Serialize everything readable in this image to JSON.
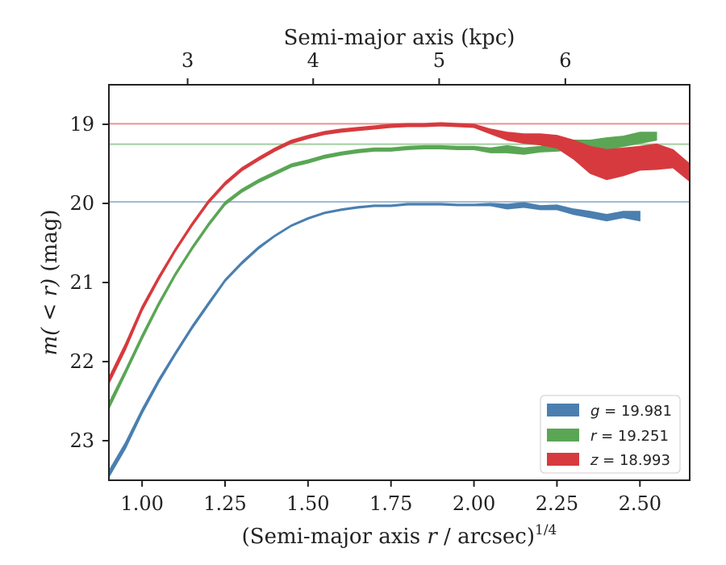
{
  "chart_data": {
    "type": "area",
    "x_axis": {
      "label": "(Semi-major axis r / arcsec)",
      "label_prefix": "(Semi-major axis ",
      "label_var": "r",
      "label_suffix": " / arcsec)",
      "label_exp": "1/4",
      "range": [
        0.9,
        2.65
      ],
      "ticks": [
        1.0,
        1.25,
        1.5,
        1.75,
        2.0,
        2.25,
        2.5
      ],
      "tick_labels": [
        "1.00",
        "1.25",
        "1.50",
        "1.75",
        "2.00",
        "2.25",
        "2.50"
      ]
    },
    "top_axis": {
      "label": "Semi-major axis (kpc)",
      "ticks": [
        3,
        4,
        5,
        6
      ],
      "tick_positions_x": [
        1.1372,
        1.5155,
        1.8951,
        2.2753
      ],
      "tick_labels": [
        "3",
        "4",
        "5",
        "6"
      ]
    },
    "y_axis": {
      "label": "m(<r) (mag)",
      "label_math": "m( < r)",
      "label_unit": " (mag)",
      "range": [
        23.5,
        18.5
      ],
      "inverted": true,
      "ticks": [
        19,
        20,
        21,
        22,
        23
      ],
      "tick_labels": [
        "19",
        "20",
        "21",
        "22",
        "23"
      ]
    },
    "legend": {
      "position": "lower-right",
      "entries": [
        {
          "var": "g",
          "text": " = 19.981"
        },
        {
          "var": "r",
          "text": " = 19.251"
        },
        {
          "var": "z",
          "text": " = 18.993"
        }
      ]
    },
    "series": [
      {
        "name": "g = 19.981",
        "color": "#4a7fb0",
        "total": 19.981,
        "x": [
          0.9,
          0.95,
          1.0,
          1.05,
          1.1,
          1.15,
          1.2,
          1.25,
          1.3,
          1.35,
          1.4,
          1.45,
          1.5,
          1.55,
          1.6,
          1.65,
          1.7,
          1.75,
          1.8,
          1.85,
          1.9,
          1.95,
          2.0,
          2.05,
          2.1,
          2.15,
          2.2,
          2.25,
          2.3,
          2.35,
          2.4,
          2.45,
          2.5
        ],
        "y_upper": [
          23.38,
          23.02,
          22.6,
          22.22,
          21.88,
          21.55,
          21.25,
          20.96,
          20.74,
          20.55,
          20.4,
          20.27,
          20.18,
          20.11,
          20.07,
          20.04,
          20.02,
          20.02,
          20.0,
          20.0,
          20.0,
          20.01,
          20.01,
          20.0,
          20.01,
          19.99,
          20.03,
          20.02,
          20.07,
          20.1,
          20.14,
          20.1,
          20.1
        ],
        "y_lower": [
          23.46,
          23.1,
          22.66,
          22.27,
          21.92,
          21.59,
          21.29,
          20.99,
          20.77,
          20.58,
          20.42,
          20.29,
          20.2,
          20.13,
          20.09,
          20.06,
          20.04,
          20.04,
          20.02,
          20.02,
          20.02,
          20.03,
          20.03,
          20.03,
          20.07,
          20.05,
          20.08,
          20.08,
          20.14,
          20.18,
          20.22,
          20.18,
          20.22
        ]
      },
      {
        "name": "r = 19.251",
        "color": "#5aa655",
        "total": 19.251,
        "x": [
          0.9,
          0.95,
          1.0,
          1.05,
          1.1,
          1.15,
          1.2,
          1.25,
          1.3,
          1.35,
          1.4,
          1.45,
          1.5,
          1.55,
          1.6,
          1.65,
          1.7,
          1.75,
          1.8,
          1.85,
          1.9,
          1.95,
          2.0,
          2.05,
          2.1,
          2.15,
          2.2,
          2.25,
          2.3,
          2.35,
          2.4,
          2.45,
          2.5,
          2.55
        ],
        "y_upper": [
          22.52,
          22.1,
          21.66,
          21.25,
          20.88,
          20.55,
          20.25,
          19.98,
          19.82,
          19.7,
          19.6,
          19.5,
          19.45,
          19.39,
          19.35,
          19.32,
          19.3,
          19.3,
          19.28,
          19.27,
          19.27,
          19.28,
          19.28,
          19.3,
          19.27,
          19.3,
          19.28,
          19.25,
          19.2,
          19.2,
          19.17,
          19.15,
          19.1,
          19.1
        ],
        "y_lower": [
          22.6,
          22.16,
          21.72,
          21.3,
          20.92,
          20.59,
          20.29,
          20.02,
          19.86,
          19.74,
          19.64,
          19.54,
          19.49,
          19.43,
          19.39,
          19.36,
          19.34,
          19.34,
          19.32,
          19.31,
          19.31,
          19.32,
          19.32,
          19.36,
          19.36,
          19.38,
          19.35,
          19.34,
          19.32,
          19.34,
          19.32,
          19.28,
          19.24,
          19.2
        ]
      },
      {
        "name": "z = 18.993",
        "color": "#d63a3e",
        "total": 18.993,
        "x": [
          0.9,
          0.95,
          1.0,
          1.05,
          1.1,
          1.15,
          1.2,
          1.25,
          1.3,
          1.35,
          1.4,
          1.45,
          1.5,
          1.55,
          1.6,
          1.65,
          1.7,
          1.75,
          1.8,
          1.85,
          1.9,
          1.95,
          2.0,
          2.05,
          2.1,
          2.15,
          2.2,
          2.25,
          2.3,
          2.35,
          2.4,
          2.45,
          2.5,
          2.55,
          2.6,
          2.65
        ],
        "y_upper": [
          22.2,
          21.77,
          21.3,
          20.92,
          20.57,
          20.25,
          19.96,
          19.73,
          19.55,
          19.42,
          19.3,
          19.2,
          19.14,
          19.09,
          19.06,
          19.04,
          19.02,
          19.0,
          18.99,
          18.99,
          18.98,
          18.99,
          19.0,
          19.06,
          19.1,
          19.12,
          19.12,
          19.14,
          19.2,
          19.28,
          19.32,
          19.3,
          19.28,
          19.25,
          19.32,
          19.5
        ],
        "y_lower": [
          22.28,
          21.85,
          21.36,
          20.97,
          20.61,
          20.29,
          20.0,
          19.77,
          19.59,
          19.46,
          19.34,
          19.24,
          19.18,
          19.13,
          19.1,
          19.08,
          19.06,
          19.04,
          19.03,
          19.03,
          19.02,
          19.03,
          19.04,
          19.12,
          19.2,
          19.24,
          19.26,
          19.3,
          19.44,
          19.62,
          19.7,
          19.65,
          19.58,
          19.57,
          19.55,
          19.72
        ]
      }
    ]
  }
}
